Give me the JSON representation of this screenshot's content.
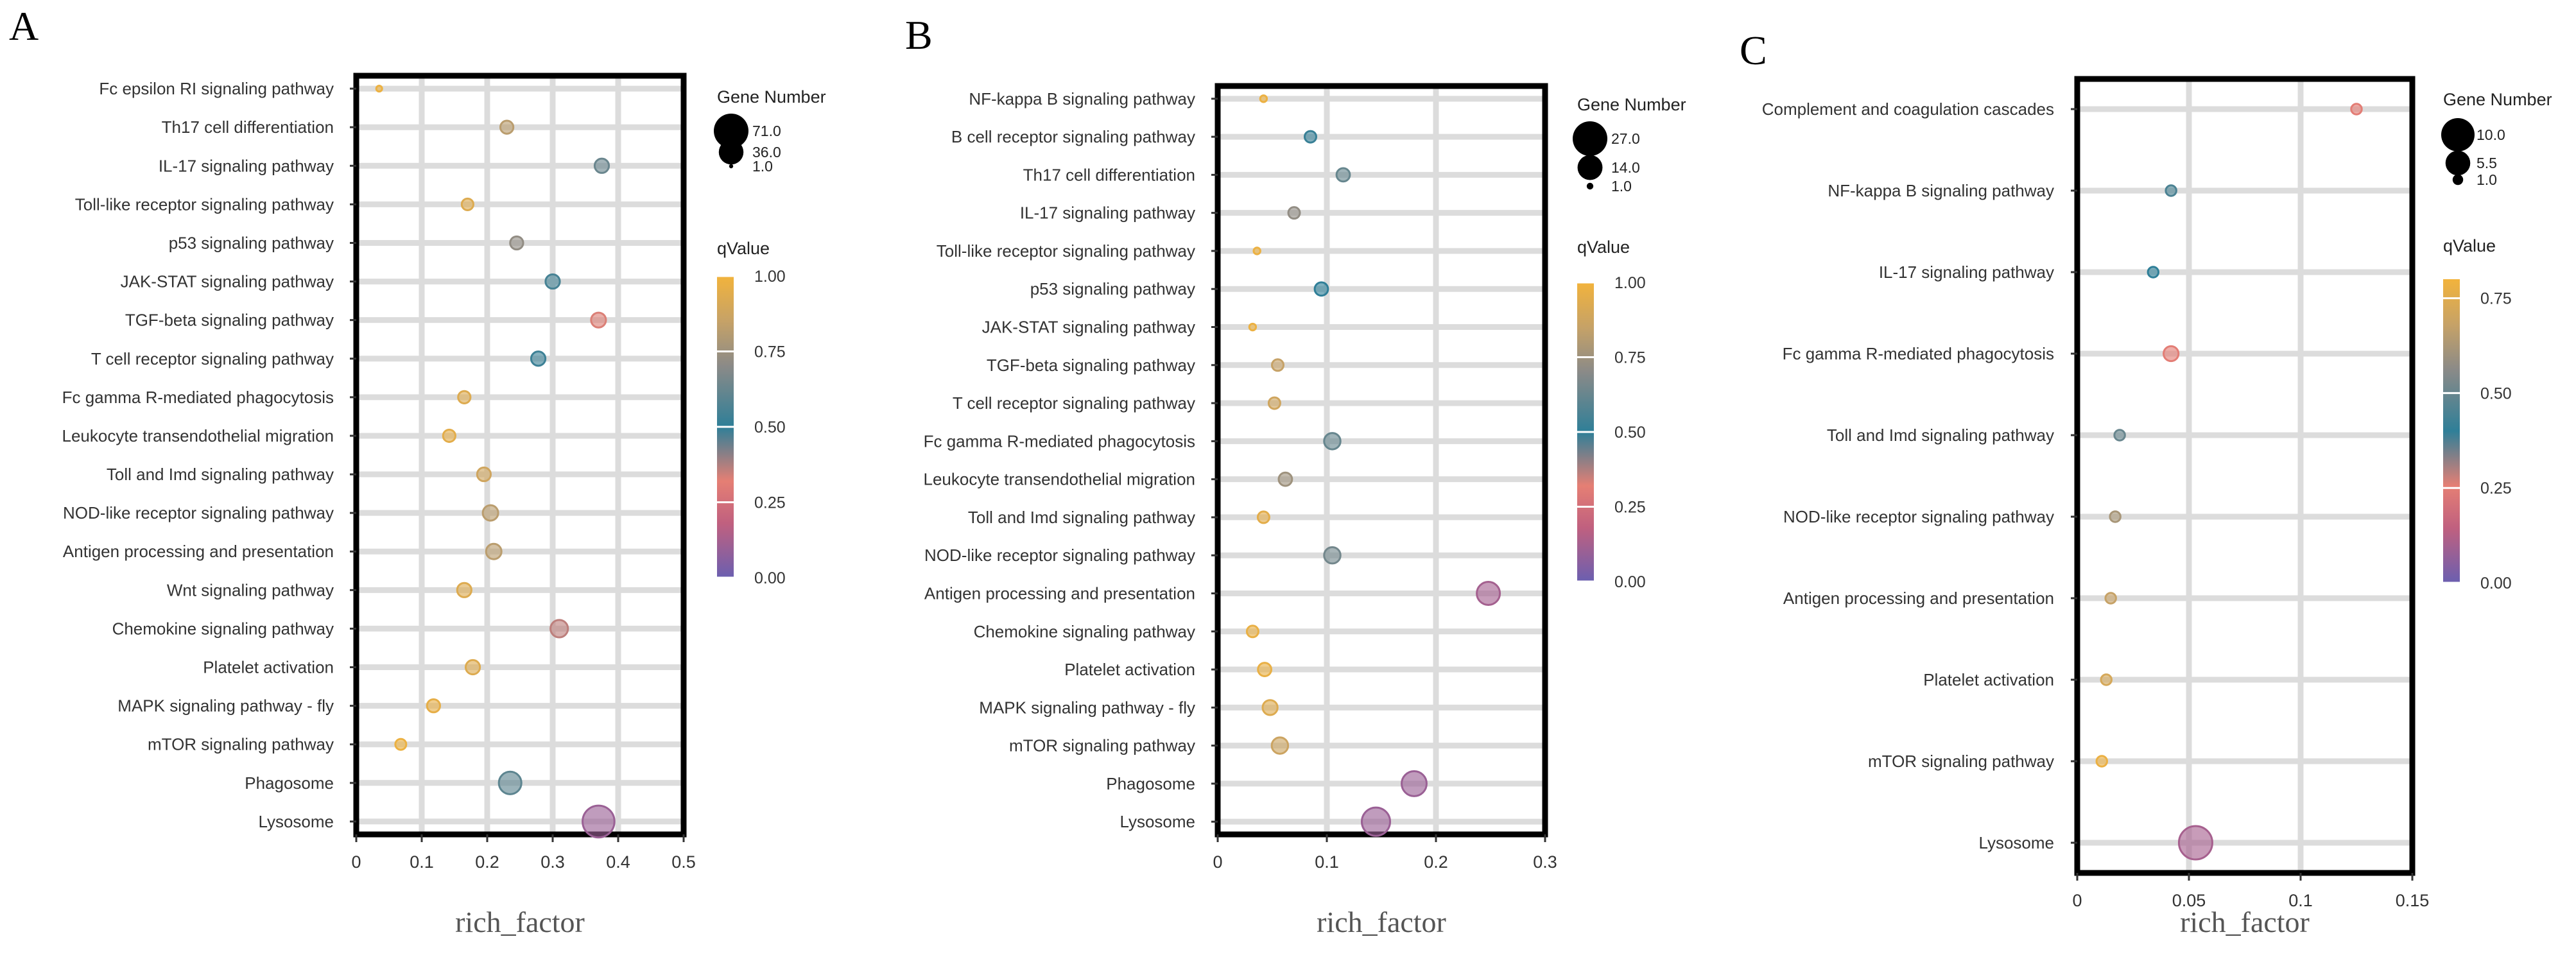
{
  "chart_data": [
    {
      "panel": "A",
      "type": "scatter",
      "xlabel": "rich_factor",
      "xlim": [
        0,
        0.5
      ],
      "xticks": [
        "0",
        "0.1",
        "0.2",
        "0.3",
        "0.4",
        "0.5"
      ],
      "size_legend": {
        "title": "Gene Number",
        "labels": [
          "71.0",
          "36.0",
          "1.0"
        ],
        "values": [
          71,
          36,
          1
        ],
        "max": 71
      },
      "color_legend": {
        "title": "qValue",
        "ticks": [
          "1.00",
          "0.75",
          "0.50",
          "0.25",
          "0.00"
        ],
        "max": 1.0
      },
      "points": [
        {
          "pathway": "Fc epsilon RI signaling pathway",
          "rich_factor": 0.035,
          "gene_number": 2,
          "qvalue": 0.98
        },
        {
          "pathway": "Th17 cell differentiation",
          "rich_factor": 0.23,
          "gene_number": 10,
          "qvalue": 0.82
        },
        {
          "pathway": "IL-17 signaling pathway",
          "rich_factor": 0.375,
          "gene_number": 12,
          "qvalue": 0.63
        },
        {
          "pathway": "Toll-like receptor signaling pathway",
          "rich_factor": 0.17,
          "gene_number": 8,
          "qvalue": 0.93
        },
        {
          "pathway": "p53 signaling pathway",
          "rich_factor": 0.245,
          "gene_number": 10,
          "qvalue": 0.72
        },
        {
          "pathway": "JAK-STAT signaling pathway",
          "rich_factor": 0.3,
          "gene_number": 12,
          "qvalue": 0.55
        },
        {
          "pathway": "TGF-beta signaling pathway",
          "rich_factor": 0.37,
          "gene_number": 13,
          "qvalue": 0.33
        },
        {
          "pathway": "T cell receptor signaling pathway",
          "rich_factor": 0.278,
          "gene_number": 12,
          "qvalue": 0.53
        },
        {
          "pathway": "Fc gamma R-mediated phagocytosis",
          "rich_factor": 0.165,
          "gene_number": 9,
          "qvalue": 0.93
        },
        {
          "pathway": "Leukocyte transendothelial migration",
          "rich_factor": 0.142,
          "gene_number": 9,
          "qvalue": 0.95
        },
        {
          "pathway": "Toll and Imd signaling pathway",
          "rich_factor": 0.195,
          "gene_number": 11,
          "qvalue": 0.88
        },
        {
          "pathway": "NOD-like receptor signaling pathway",
          "rich_factor": 0.205,
          "gene_number": 14,
          "qvalue": 0.82
        },
        {
          "pathway": "Antigen processing and presentation",
          "rich_factor": 0.21,
          "gene_number": 14,
          "qvalue": 0.82
        },
        {
          "pathway": "Wnt signaling pathway",
          "rich_factor": 0.165,
          "gene_number": 12,
          "qvalue": 0.93
        },
        {
          "pathway": "Chemokine signaling pathway",
          "rich_factor": 0.31,
          "gene_number": 18,
          "qvalue": 0.36
        },
        {
          "pathway": "Platelet activation",
          "rich_factor": 0.178,
          "gene_number": 12,
          "qvalue": 0.93
        },
        {
          "pathway": "MAPK signaling pathway - fly",
          "rich_factor": 0.118,
          "gene_number": 10,
          "qvalue": 0.96
        },
        {
          "pathway": "mTOR signaling pathway",
          "rich_factor": 0.068,
          "gene_number": 7,
          "qvalue": 0.98
        },
        {
          "pathway": "Phagosome",
          "rich_factor": 0.235,
          "gene_number": 30,
          "qvalue": 0.6
        },
        {
          "pathway": "Lysosome",
          "rich_factor": 0.37,
          "gene_number": 60,
          "qvalue": 0.1
        }
      ]
    },
    {
      "panel": "B",
      "type": "scatter",
      "xlabel": "rich_factor",
      "xlim": [
        0,
        0.3
      ],
      "xticks": [
        "0",
        "0.1",
        "0.2",
        "0.3"
      ],
      "size_legend": {
        "title": "Gene Number",
        "labels": [
          "27.0",
          "14.0",
          "1.0"
        ],
        "values": [
          27,
          14,
          1
        ],
        "max": 27
      },
      "color_legend": {
        "title": "qValue",
        "ticks": [
          "1.00",
          "0.75",
          "0.50",
          "0.25",
          "0.00"
        ],
        "max": 1.0
      },
      "points": [
        {
          "pathway": "NF-kappa B signaling pathway",
          "rich_factor": 0.042,
          "gene_number": 1,
          "qvalue": 0.98
        },
        {
          "pathway": "B cell receptor signaling pathway",
          "rich_factor": 0.085,
          "gene_number": 3,
          "qvalue": 0.52
        },
        {
          "pathway": "Th17 cell differentiation",
          "rich_factor": 0.115,
          "gene_number": 4,
          "qvalue": 0.62
        },
        {
          "pathway": "IL-17 signaling pathway",
          "rich_factor": 0.07,
          "gene_number": 3,
          "qvalue": 0.72
        },
        {
          "pathway": "Toll-like receptor signaling pathway",
          "rich_factor": 0.036,
          "gene_number": 1,
          "qvalue": 0.98
        },
        {
          "pathway": "p53 signaling pathway",
          "rich_factor": 0.095,
          "gene_number": 4,
          "qvalue": 0.5
        },
        {
          "pathway": "JAK-STAT signaling pathway",
          "rich_factor": 0.032,
          "gene_number": 1,
          "qvalue": 0.98
        },
        {
          "pathway": "TGF-beta signaling pathway",
          "rich_factor": 0.055,
          "gene_number": 3,
          "qvalue": 0.85
        },
        {
          "pathway": "T cell receptor signaling pathway",
          "rich_factor": 0.052,
          "gene_number": 3,
          "qvalue": 0.88
        },
        {
          "pathway": "Fc gamma R-mediated phagocytosis",
          "rich_factor": 0.105,
          "gene_number": 6,
          "qvalue": 0.62
        },
        {
          "pathway": "Leukocyte transendothelial migration",
          "rich_factor": 0.062,
          "gene_number": 4,
          "qvalue": 0.75
        },
        {
          "pathway": "Toll and Imd signaling pathway",
          "rich_factor": 0.042,
          "gene_number": 3,
          "qvalue": 0.95
        },
        {
          "pathway": "NOD-like receptor signaling pathway",
          "rich_factor": 0.105,
          "gene_number": 6,
          "qvalue": 0.65
        },
        {
          "pathway": "Antigen processing and presentation",
          "rich_factor": 0.248,
          "gene_number": 12,
          "qvalue": 0.12
        },
        {
          "pathway": "Chemokine signaling pathway",
          "rich_factor": 0.032,
          "gene_number": 3,
          "qvalue": 0.97
        },
        {
          "pathway": "Platelet activation",
          "rich_factor": 0.043,
          "gene_number": 4,
          "qvalue": 0.97
        },
        {
          "pathway": "MAPK signaling pathway - fly",
          "rich_factor": 0.048,
          "gene_number": 5,
          "qvalue": 0.93
        },
        {
          "pathway": "mTOR signaling pathway",
          "rich_factor": 0.057,
          "gene_number": 6,
          "qvalue": 0.87
        },
        {
          "pathway": "Phagosome",
          "rich_factor": 0.18,
          "gene_number": 14,
          "qvalue": 0.1
        },
        {
          "pathway": "Lysosome",
          "rich_factor": 0.145,
          "gene_number": 18,
          "qvalue": 0.1
        }
      ]
    },
    {
      "panel": "C",
      "type": "scatter",
      "xlabel": "rich_factor",
      "xlim": [
        0,
        0.15
      ],
      "xticks": [
        "0",
        "0.05",
        "0.1",
        "0.15"
      ],
      "size_legend": {
        "title": "Gene Number",
        "labels": [
          "10.0",
          "5.5",
          "1.0"
        ],
        "values": [
          10,
          5.5,
          1
        ],
        "max": 10
      },
      "color_legend": {
        "title": "qValue",
        "ticks": [
          "0.75",
          "0.50",
          "0.25",
          "0.00"
        ],
        "max": 0.8
      },
      "points": [
        {
          "pathway": "Complement and coagulation cascades",
          "rich_factor": 0.125,
          "gene_number": 1,
          "qvalue": 0.25
        },
        {
          "pathway": "NF-kappa B signaling pathway",
          "rich_factor": 0.042,
          "gene_number": 1,
          "qvalue": 0.45
        },
        {
          "pathway": "IL-17 signaling pathway",
          "rich_factor": 0.034,
          "gene_number": 1,
          "qvalue": 0.4
        },
        {
          "pathway": "Fc gamma R-mediated phagocytosis",
          "rich_factor": 0.042,
          "gene_number": 2,
          "qvalue": 0.25
        },
        {
          "pathway": "Toll and Imd signaling pathway",
          "rich_factor": 0.019,
          "gene_number": 1,
          "qvalue": 0.5
        },
        {
          "pathway": "NOD-like receptor signaling pathway",
          "rich_factor": 0.017,
          "gene_number": 1,
          "qvalue": 0.62
        },
        {
          "pathway": "Antigen processing and presentation",
          "rich_factor": 0.015,
          "gene_number": 1,
          "qvalue": 0.68
        },
        {
          "pathway": "Platelet activation",
          "rich_factor": 0.013,
          "gene_number": 1,
          "qvalue": 0.72
        },
        {
          "pathway": "mTOR signaling pathway",
          "rich_factor": 0.011,
          "gene_number": 1,
          "qvalue": 0.78
        },
        {
          "pathway": "Lysosome",
          "rich_factor": 0.053,
          "gene_number": 10,
          "qvalue": 0.1
        }
      ]
    }
  ]
}
